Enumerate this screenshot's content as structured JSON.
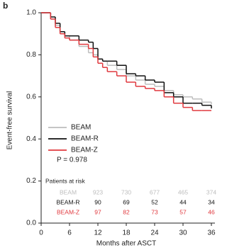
{
  "chart_data": {
    "type": "step",
    "panel_label": "b",
    "ylabel": "Event-free survival",
    "xlabel": "Months after ASCT",
    "x": [
      0,
      2,
      3,
      4,
      5,
      6,
      8,
      10,
      11,
      12,
      13,
      14,
      16,
      18,
      20,
      22,
      24,
      26,
      28,
      30,
      32,
      34,
      36
    ],
    "series": [
      {
        "name": "BEAM",
        "color": "#bdbdbd",
        "values": [
          1,
          0.97,
          0.94,
          0.91,
          0.89,
          0.87,
          0.84,
          0.81,
          0.8,
          0.78,
          0.77,
          0.75,
          0.73,
          0.7,
          0.68,
          0.66,
          0.65,
          0.63,
          0.61,
          0.6,
          0.59,
          0.575,
          0.565
        ]
      },
      {
        "name": "BEAM-R",
        "color": "#111111",
        "values": [
          1,
          0.98,
          0.95,
          0.91,
          0.89,
          0.89,
          0.87,
          0.86,
          0.83,
          0.78,
          0.77,
          0.77,
          0.75,
          0.71,
          0.7,
          0.68,
          0.67,
          0.62,
          0.6,
          0.57,
          0.57,
          0.56,
          0.545
        ]
      },
      {
        "name": "BEAM-Z",
        "color": "#e0393e",
        "values": [
          1,
          0.97,
          0.93,
          0.9,
          0.88,
          0.87,
          0.85,
          0.83,
          0.79,
          0.76,
          0.74,
          0.72,
          0.7,
          0.67,
          0.65,
          0.64,
          0.63,
          0.6,
          0.57,
          0.55,
          0.535,
          0.535,
          0.535
        ]
      }
    ],
    "annotation": "P = 0.978",
    "xlim": [
      0,
      36
    ],
    "xticks": [
      0,
      6,
      12,
      18,
      24,
      30,
      36
    ],
    "ylim": [
      0,
      1
    ],
    "yticks": [
      {
        "value": 0,
        "label": "0.0"
      },
      {
        "value": 0.2,
        "label": "0.2"
      },
      {
        "value": 0.4,
        "label": "0.4"
      },
      {
        "value": 0.6,
        "label": "0.6"
      },
      {
        "value": 0.8,
        "label": "0.8"
      },
      {
        "value": 1,
        "label": "1.0"
      }
    ],
    "grid": false,
    "risk_table": {
      "title": "Patients at risk",
      "rows": [
        {
          "name": "BEAM",
          "color": "#bdbdbd",
          "counts": [
            923,
            730,
            677,
            465,
            374
          ]
        },
        {
          "name": "BEAM-R",
          "color": "#111111",
          "counts": [
            90,
            69,
            52,
            44,
            34
          ]
        },
        {
          "name": "BEAM-Z",
          "color": "#e0393e",
          "counts": [
            97,
            82,
            73,
            57,
            46
          ]
        }
      ]
    }
  }
}
